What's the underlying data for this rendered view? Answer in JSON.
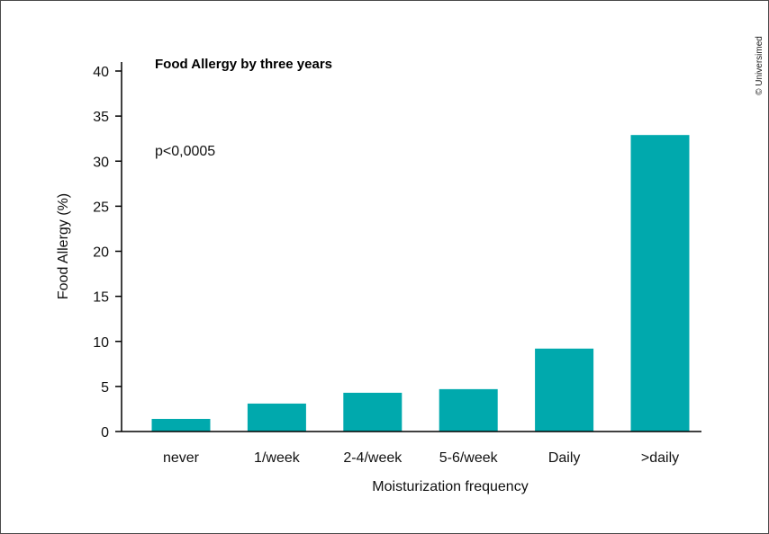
{
  "chart_data": {
    "type": "bar",
    "title": "Food Allergy by three years",
    "annotation": "p<0,0005",
    "xlabel": "Moisturization frequency",
    "ylabel": "Food Allergy (%)",
    "categories": [
      "never",
      "1/week",
      "2-4/week",
      "5-6/week",
      "Daily",
      ">daily"
    ],
    "values": [
      1.4,
      3.1,
      4.3,
      4.7,
      9.2,
      32.9
    ],
    "ylim": [
      0,
      40
    ],
    "yticks": [
      "0",
      "5",
      "10",
      "15",
      "20",
      "25",
      "30",
      "35",
      "40"
    ],
    "bar_color": "#00a9ad",
    "grid": false,
    "legend": "none"
  },
  "credit": "© Universimed"
}
